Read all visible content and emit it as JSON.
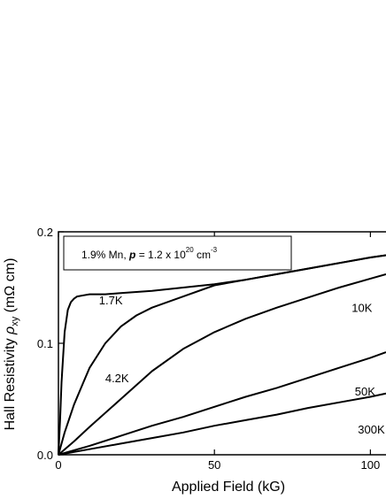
{
  "chart_data": {
    "type": "line",
    "xlabel": "Applied Field (kG)",
    "ylabel_main": "Hall Resistivity ",
    "ylabel_symbol": "ρ",
    "ylabel_sub": "xy",
    "ylabel_unit": " (mΩ cm)",
    "xlim": [
      0,
      105
    ],
    "ylim": [
      0,
      0.2
    ],
    "x_ticks": [
      {
        "v": 0,
        "label": "0"
      },
      {
        "v": 50,
        "label": "50"
      },
      {
        "v": 100,
        "label": "100"
      }
    ],
    "y_ticks": [
      {
        "v": 0,
        "label": "0.0"
      },
      {
        "v": 0.1,
        "label": "0.1"
      },
      {
        "v": 0.2,
        "label": "0.2"
      }
    ],
    "grid": false,
    "legend_box": {
      "text_pre": "1.9% Mn, ",
      "text_p": "p",
      "text_mid": " = 1.2 x 10",
      "text_exp1": "20",
      "text_unit": " cm",
      "text_exp2": "-3"
    },
    "series": [
      {
        "name": "1.7K",
        "label_at": [
          13,
          0.135
        ],
        "points": [
          [
            0,
            0
          ],
          [
            0.5,
            0.03
          ],
          [
            1,
            0.065
          ],
          [
            2,
            0.11
          ],
          [
            3,
            0.13
          ],
          [
            4,
            0.137
          ],
          [
            5,
            0.14
          ],
          [
            6,
            0.142
          ],
          [
            8,
            0.143
          ],
          [
            10,
            0.144
          ],
          [
            15,
            0.144
          ],
          [
            20,
            0.145
          ],
          [
            30,
            0.147
          ],
          [
            40,
            0.15
          ],
          [
            50,
            0.153
          ],
          [
            60,
            0.157
          ],
          [
            70,
            0.162
          ],
          [
            80,
            0.167
          ],
          [
            90,
            0.172
          ],
          [
            100,
            0.177
          ],
          [
            105,
            0.179
          ]
        ]
      },
      {
        "name": "4.2K",
        "label_at": [
          15,
          0.065
        ],
        "points": [
          [
            0,
            0
          ],
          [
            2,
            0.02
          ],
          [
            5,
            0.045
          ],
          [
            8,
            0.065
          ],
          [
            10,
            0.078
          ],
          [
            15,
            0.1
          ],
          [
            20,
            0.115
          ],
          [
            25,
            0.125
          ],
          [
            30,
            0.132
          ],
          [
            40,
            0.142
          ],
          [
            50,
            0.152
          ],
          [
            60,
            0.157
          ],
          [
            70,
            0.162
          ],
          [
            80,
            0.167
          ],
          [
            90,
            0.172
          ],
          [
            100,
            0.177
          ],
          [
            105,
            0.179
          ]
        ]
      },
      {
        "name": "10K",
        "label_at": [
          94,
          0.128
        ],
        "points": [
          [
            0,
            0
          ],
          [
            5,
            0.012
          ],
          [
            10,
            0.025
          ],
          [
            20,
            0.05
          ],
          [
            30,
            0.075
          ],
          [
            40,
            0.095
          ],
          [
            50,
            0.11
          ],
          [
            60,
            0.122
          ],
          [
            70,
            0.132
          ],
          [
            80,
            0.141
          ],
          [
            90,
            0.15
          ],
          [
            100,
            0.158
          ],
          [
            105,
            0.162
          ]
        ]
      },
      {
        "name": "50K",
        "label_at": [
          95,
          0.053
        ],
        "points": [
          [
            0,
            0
          ],
          [
            10,
            0.008
          ],
          [
            20,
            0.017
          ],
          [
            30,
            0.026
          ],
          [
            40,
            0.034
          ],
          [
            50,
            0.043
          ],
          [
            60,
            0.052
          ],
          [
            70,
            0.06
          ],
          [
            80,
            0.069
          ],
          [
            90,
            0.078
          ],
          [
            100,
            0.087
          ],
          [
            105,
            0.092
          ]
        ]
      },
      {
        "name": "300K",
        "label_at": [
          96,
          0.019
        ],
        "points": [
          [
            0,
            0
          ],
          [
            10,
            0.005
          ],
          [
            20,
            0.01
          ],
          [
            30,
            0.015
          ],
          [
            40,
            0.02
          ],
          [
            50,
            0.026
          ],
          [
            60,
            0.031
          ],
          [
            70,
            0.036
          ],
          [
            80,
            0.042
          ],
          [
            90,
            0.047
          ],
          [
            100,
            0.052
          ],
          [
            105,
            0.055
          ]
        ]
      }
    ]
  }
}
